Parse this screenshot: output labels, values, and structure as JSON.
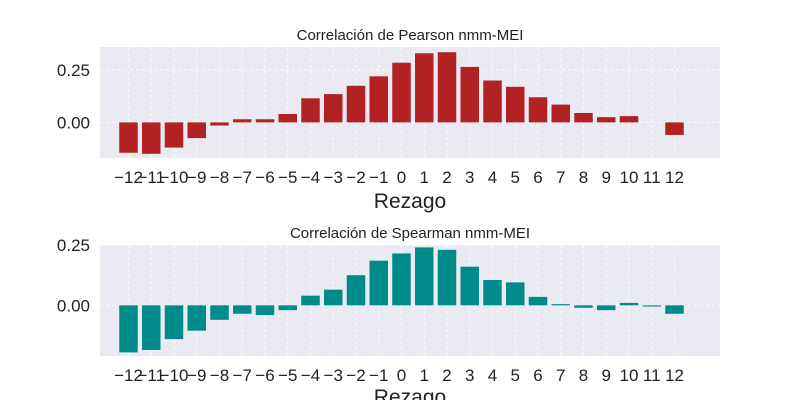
{
  "chart_data": [
    {
      "type": "bar",
      "title": "Correlación de Pearson nmm-MEI",
      "xlabel": "Rezago",
      "ylabel": "",
      "categories": [
        "−12",
        "−11",
        "−10",
        "−9",
        "−8",
        "−7",
        "−6",
        "−5",
        "−4",
        "−3",
        "−2",
        "−1",
        "0",
        "1",
        "2",
        "3",
        "4",
        "5",
        "6",
        "7",
        "8",
        "9",
        "10",
        "11",
        "12"
      ],
      "values": [
        -0.145,
        -0.15,
        -0.12,
        -0.075,
        -0.015,
        0.015,
        0.015,
        0.04,
        0.115,
        0.135,
        0.175,
        0.22,
        0.285,
        0.33,
        0.335,
        0.265,
        0.2,
        0.17,
        0.12,
        0.085,
        0.045,
        0.025,
        0.03,
        0.0,
        -0.06
      ],
      "yticks": [
        "0.00",
        "0.25"
      ],
      "ytick_values": [
        0,
        0.25
      ],
      "ylim": [
        -0.17,
        0.36
      ],
      "color": "#b22222",
      "grid": true
    },
    {
      "type": "bar",
      "title": "Correlación de Spearman nmm-MEI",
      "xlabel": "Rezago",
      "ylabel": "",
      "categories": [
        "−12",
        "−11",
        "−10",
        "−9",
        "−8",
        "−7",
        "−6",
        "−5",
        "−4",
        "−3",
        "−2",
        "−1",
        "0",
        "1",
        "2",
        "3",
        "4",
        "5",
        "6",
        "7",
        "8",
        "9",
        "10",
        "11",
        "12"
      ],
      "values": [
        -0.195,
        -0.185,
        -0.14,
        -0.105,
        -0.06,
        -0.035,
        -0.04,
        -0.02,
        0.04,
        0.065,
        0.125,
        0.185,
        0.215,
        0.24,
        0.23,
        0.16,
        0.105,
        0.095,
        0.035,
        0.005,
        -0.01,
        -0.02,
        0.01,
        -0.005,
        -0.035
      ],
      "yticks": [
        "0.00",
        "0.25"
      ],
      "ytick_values": [
        0,
        0.25
      ],
      "ylim": [
        -0.21,
        0.25
      ],
      "color": "#008b8b",
      "grid": true
    }
  ]
}
